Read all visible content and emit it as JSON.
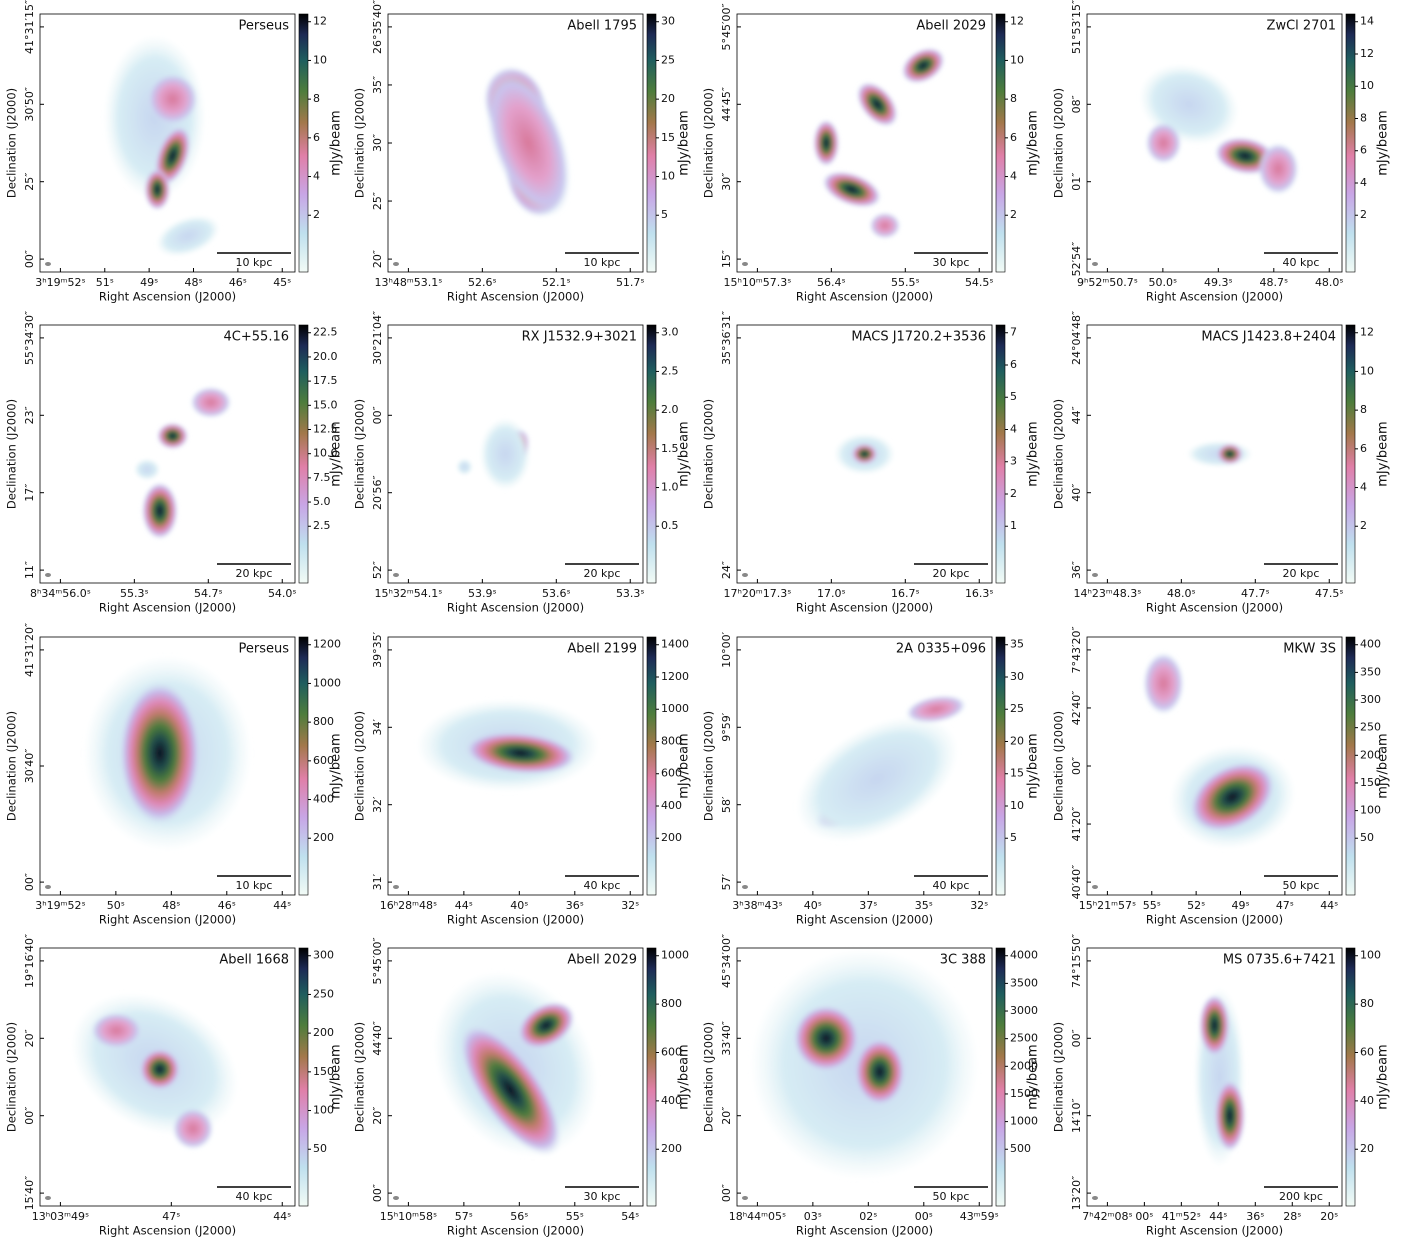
{
  "labels": {
    "ra": "Right Ascension (J2000)",
    "dec": "Declination (J2000)",
    "unit": "mJy/beam"
  },
  "panels": [
    {
      "title": "Perseus",
      "scale": "10 kpc",
      "xticks": [
        "3ʰ19ᵐ52ˢ",
        "51ˢ",
        "49ˢ",
        "48ˢ",
        "46ˢ",
        "45ˢ"
      ],
      "yticks": [
        "41°31′15″",
        "30′50″",
        "25″",
        "00″"
      ],
      "cbar": [
        "12",
        "10",
        "8",
        "6",
        "4",
        "2"
      ]
    },
    {
      "title": "Abell 1795",
      "scale": "10 kpc",
      "xticks": [
        "13ʰ48ᵐ53.1ˢ",
        "52.6ˢ",
        "52.1ˢ",
        "51.7ˢ"
      ],
      "yticks": [
        "26°35′40″",
        "35″",
        "30″",
        "25″",
        "20″"
      ],
      "cbar": [
        "30",
        "25",
        "20",
        "15",
        "10",
        "5"
      ]
    },
    {
      "title": "Abell 2029",
      "scale": "30 kpc",
      "xticks": [
        "15ʰ10ᵐ57.3ˢ",
        "56.4ˢ",
        "55.5ˢ",
        "54.5ˢ"
      ],
      "yticks": [
        "5°45′00″",
        "44′45″",
        "30″",
        "15″"
      ],
      "cbar": [
        "12",
        "10",
        "8",
        "6",
        "4",
        "2"
      ]
    },
    {
      "title": "ZwCl 2701",
      "scale": "40 kpc",
      "xticks": [
        "9ʰ52ᵐ50.7ˢ",
        "50.0ˢ",
        "49.3ˢ",
        "48.7ˢ",
        "48.0ˢ"
      ],
      "yticks": [
        "51°53′15″",
        "08″",
        "01″",
        "52′54″"
      ],
      "cbar": [
        "14",
        "12",
        "10",
        "8",
        "6",
        "4",
        "2"
      ]
    },
    {
      "title": "4C+55.16",
      "scale": "20 kpc",
      "xticks": [
        "8ʰ34ᵐ56.0ˢ",
        "55.3ˢ",
        "54.7ˢ",
        "54.0ˢ"
      ],
      "yticks": [
        "55°34′30″",
        "23″",
        "17″",
        "11″"
      ],
      "cbar": [
        "22.5",
        "20.0",
        "17.5",
        "15.0",
        "12.5",
        "10.0",
        "7.5",
        "5.0",
        "2.5"
      ]
    },
    {
      "title": "RX J1532.9+3021",
      "scale": "20 kpc",
      "xticks": [
        "15ʰ32ᵐ54.1ˢ",
        "53.9ˢ",
        "53.6ˢ",
        "53.3ˢ"
      ],
      "yticks": [
        "30°21′04″",
        "00″",
        "20′56″",
        "52″"
      ],
      "cbar": [
        "3.0",
        "2.5",
        "2.0",
        "1.5",
        "1.0",
        "0.5"
      ]
    },
    {
      "title": "MACS J1720.2+3536",
      "scale": "20 kpc",
      "xticks": [
        "17ʰ20ᵐ17.3ˢ",
        "17.0ˢ",
        "16.7ˢ",
        "16.3ˢ"
      ],
      "yticks": [
        "35°36′31″",
        "24″"
      ],
      "cbar": [
        "7",
        "6",
        "5",
        "4",
        "3",
        "2",
        "1"
      ]
    },
    {
      "title": "MACS J1423.8+2404",
      "scale": "20 kpc",
      "xticks": [
        "14ʰ23ᵐ48.3ˢ",
        "48.0ˢ",
        "47.7ˢ",
        "47.5ˢ"
      ],
      "yticks": [
        "24°04′48″",
        "44″",
        "40″",
        "36″"
      ],
      "cbar": [
        "12",
        "10",
        "8",
        "6",
        "4",
        "2"
      ]
    },
    {
      "title": "Perseus",
      "scale": "10 kpc",
      "xticks": [
        "3ʰ19ᵐ52ˢ",
        "50ˢ",
        "48ˢ",
        "46ˢ",
        "44ˢ"
      ],
      "yticks": [
        "41°31′20″",
        "30′40″",
        "00″"
      ],
      "cbar": [
        "1200",
        "1000",
        "800",
        "600",
        "400",
        "200"
      ]
    },
    {
      "title": "Abell 2199",
      "scale": "40 kpc",
      "xticks": [
        "16ʰ28ᵐ48ˢ",
        "44ˢ",
        "40ˢ",
        "36ˢ",
        "32ˢ"
      ],
      "yticks": [
        "39°35′",
        "34′",
        "32′",
        "31′"
      ],
      "cbar": [
        "1400",
        "1200",
        "1000",
        "800",
        "600",
        "400",
        "200"
      ]
    },
    {
      "title": "2A 0335+096",
      "scale": "40 kpc",
      "xticks": [
        "3ʰ38ᵐ43ˢ",
        "40ˢ",
        "37ˢ",
        "35ˢ",
        "32ˢ"
      ],
      "yticks": [
        "10°00′",
        "9°59′",
        "58′",
        "57′"
      ],
      "cbar": [
        "35",
        "30",
        "25",
        "20",
        "15",
        "10",
        "5"
      ]
    },
    {
      "title": "MKW 3S",
      "scale": "50 kpc",
      "xticks": [
        "15ʰ21ᵐ57ˢ",
        "55ˢ",
        "52ˢ",
        "49ˢ",
        "47ˢ",
        "44ˢ"
      ],
      "yticks": [
        "7°43′20″",
        "42′40″",
        "00″",
        "41′20″",
        "40′40″"
      ],
      "cbar": [
        "400",
        "350",
        "300",
        "250",
        "200",
        "150",
        "100",
        "50"
      ]
    },
    {
      "title": "Abell 1668",
      "scale": "40 kpc",
      "xticks": [
        "13ʰ03ᵐ49ˢ",
        "47ˢ",
        "44ˢ"
      ],
      "yticks": [
        "19°16′40″",
        "20″",
        "00″",
        "15′40″"
      ],
      "cbar": [
        "300",
        "250",
        "200",
        "150",
        "100",
        "50"
      ]
    },
    {
      "title": "Abell 2029",
      "scale": "30 kpc",
      "xticks": [
        "15ʰ10ᵐ58ˢ",
        "57ˢ",
        "56ˢ",
        "55ˢ",
        "54ˢ"
      ],
      "yticks": [
        "5°45′00″",
        "44′40″",
        "20″",
        "00″"
      ],
      "cbar": [
        "1000",
        "800",
        "600",
        "400",
        "200"
      ]
    },
    {
      "title": "3C 388",
      "scale": "50 kpc",
      "xticks": [
        "18ʰ44ᵐ05ˢ",
        "03ˢ",
        "02ˢ",
        "00ˢ",
        "43ᵐ59ˢ"
      ],
      "yticks": [
        "45°34′00″",
        "33′40″",
        "20″",
        "00″"
      ],
      "cbar": [
        "4000",
        "3500",
        "3000",
        "2500",
        "2000",
        "1500",
        "1000",
        "500"
      ]
    },
    {
      "title": "MS 0735.6+7421",
      "scale": "200 kpc",
      "xticks": [
        "7ʰ42ᵐ08ˢ",
        "00ˢ",
        "41ᵐ52ˢ",
        "44ˢ",
        "36ˢ",
        "28ˢ",
        "20ˢ"
      ],
      "yticks": [
        "74°15′50″",
        "00″",
        "14′10″",
        "13′20″"
      ],
      "cbar": [
        "100",
        "80",
        "60",
        "40",
        "20"
      ]
    }
  ]
}
